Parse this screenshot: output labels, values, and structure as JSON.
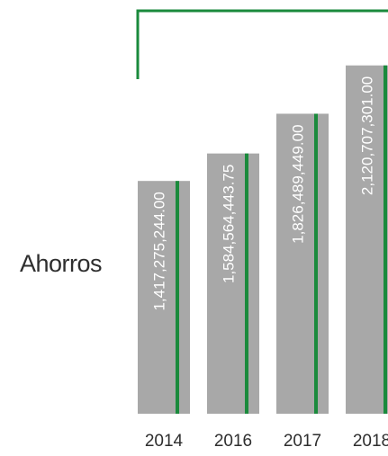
{
  "chart_data": {
    "type": "bar",
    "title": "",
    "xlabel": "",
    "ylabel": "Ahorros",
    "categories": [
      "2014",
      "2016",
      "2017",
      "2018"
    ],
    "values": [
      1417275244.0,
      1584564443.75,
      1826489449.0,
      2120707301.0
    ],
    "data_labels": [
      "1,417,275,244.00",
      "1,584,564,443.75",
      "1,826,489,449.00",
      "2,120,707,301.00"
    ],
    "ylim": [
      0,
      2300000000
    ],
    "grid": false,
    "legend": "none",
    "colors": {
      "bar": "#a8a8a8",
      "accent": "#1a8a3c",
      "label": "#ffffff",
      "text": "#2e2e2e"
    }
  }
}
